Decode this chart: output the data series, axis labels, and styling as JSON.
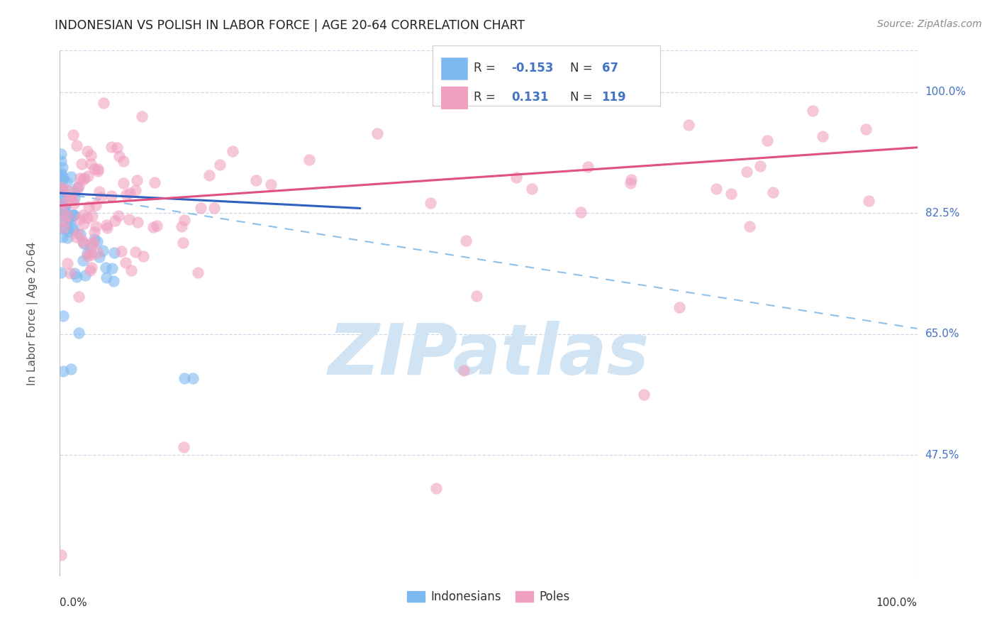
{
  "title": "INDONESIAN VS POLISH IN LABOR FORCE | AGE 20-64 CORRELATION CHART",
  "source": "Source: ZipAtlas.com",
  "ylabel": "In Labor Force | Age 20-64",
  "y_tick_labels": [
    "100.0%",
    "82.5%",
    "65.0%",
    "47.5%"
  ],
  "y_tick_values": [
    1.0,
    0.825,
    0.65,
    0.475
  ],
  "x_min": 0.0,
  "x_max": 1.0,
  "y_min": 0.3,
  "y_max": 1.06,
  "indonesian_R": -0.153,
  "indonesian_N": 67,
  "polish_R": 0.131,
  "polish_N": 119,
  "indonesian_color": "#7EB8F0",
  "polish_color": "#F0A0C0",
  "indonesian_line_color": "#3060C0",
  "polish_line_color": "#E05080",
  "dashed_line_color": "#90C0E8",
  "background_color": "#FFFFFF",
  "watermark_text": "ZIPatlas",
  "watermark_color": "#D0E4F4",
  "grid_color": "#C8D8E8",
  "legend_text_color": "#4472C4",
  "title_color": "#202020",
  "source_color": "#888888",
  "ylabel_color": "#555555",
  "axis_label_color": "#333333",
  "legend_box_edge": "#CCCCCC",
  "indo_line_start_x": 0.0,
  "indo_line_start_y": 0.854,
  "indo_line_end_x": 0.35,
  "indo_line_end_y": 0.832,
  "polish_line_start_x": 0.0,
  "polish_line_start_y": 0.836,
  "polish_line_end_x": 1.0,
  "polish_line_end_y": 0.92,
  "dash_line_start_x": 0.0,
  "dash_line_start_y": 0.854,
  "dash_line_end_x": 1.0,
  "dash_line_end_y": 0.658
}
